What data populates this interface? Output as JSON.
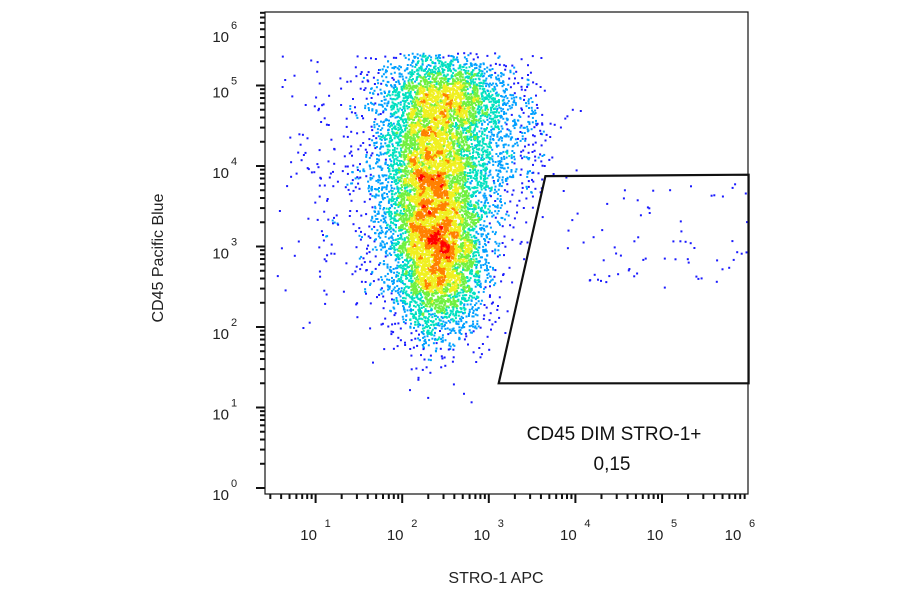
{
  "chart_data": {
    "type": "scatter",
    "title": "",
    "xlabel": "STRO-1 APC",
    "ylabel": "CD45 Pacific Blue",
    "x_scale": "log",
    "y_scale": "log",
    "xlim": [
      1,
      1000000
    ],
    "ylim": [
      1,
      1000000
    ],
    "x_ticks": [
      {
        "base": "10",
        "exp": "1",
        "value": 10
      },
      {
        "base": "10",
        "exp": "2",
        "value": 100
      },
      {
        "base": "10",
        "exp": "3",
        "value": 1000
      },
      {
        "base": "10",
        "exp": "4",
        "value": 10000
      },
      {
        "base": "10",
        "exp": "5",
        "value": 100000
      },
      {
        "base": "10",
        "exp": "6",
        "value": 1000000
      }
    ],
    "y_ticks": [
      {
        "base": "10",
        "exp": "0",
        "value": 1
      },
      {
        "base": "10",
        "exp": "1",
        "value": 10
      },
      {
        "base": "10",
        "exp": "2",
        "value": 100
      },
      {
        "base": "10",
        "exp": "3",
        "value": 1000
      },
      {
        "base": "10",
        "exp": "4",
        "value": 10000
      },
      {
        "base": "10",
        "exp": "5",
        "value": 100000
      },
      {
        "base": "10",
        "exp": "6",
        "value": 1000000
      }
    ],
    "color_map": [
      "#1a1aff",
      "#00a0ff",
      "#00e0c0",
      "#70f040",
      "#f0f020",
      "#ff8000",
      "#ff0000"
    ],
    "populations": [
      {
        "center_x": 220,
        "center_y": 12000,
        "note_color": "#ff0000"
      },
      {
        "center_x": 250,
        "center_y": 550,
        "note_color": "#ff0000"
      }
    ],
    "gate": {
      "name": "CD45 DIM STRO-1+",
      "value": "0,15",
      "vertices": [
        [
          4500,
          7500
        ],
        [
          1000000,
          7800
        ],
        [
          1000000,
          20
        ],
        [
          1300,
          20
        ]
      ]
    }
  }
}
